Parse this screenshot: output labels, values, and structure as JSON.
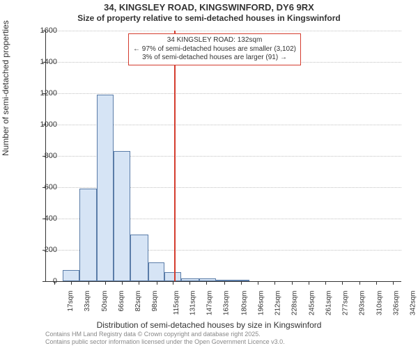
{
  "header": {
    "title": "34, KINGSLEY ROAD, KINGSWINFORD, DY6 9RX",
    "subtitle": "Size of property relative to semi-detached houses in Kingswinford"
  },
  "axes": {
    "y_label": "Number of semi-detached properties",
    "x_label": "Distribution of semi-detached houses by size in Kingswinford",
    "label_fontsize": 12
  },
  "chart": {
    "type": "histogram",
    "background_color": "#ffffff",
    "grid_color": "#c0c0c0",
    "axis_color": "#333333",
    "bar_fill": "#d6e4f5",
    "bar_stroke": "#5a7ca8",
    "marker_color": "#d43c2e",
    "ylim": [
      0,
      1600
    ],
    "y_ticks": [
      0,
      200,
      400,
      600,
      800,
      1000,
      1200,
      1400,
      1600
    ],
    "x_min": 9,
    "x_max": 350,
    "x_ticks": [
      {
        "v": 17,
        "label": "17sqm"
      },
      {
        "v": 33,
        "label": "33sqm"
      },
      {
        "v": 50,
        "label": "50sqm"
      },
      {
        "v": 66,
        "label": "66sqm"
      },
      {
        "v": 82,
        "label": "82sqm"
      },
      {
        "v": 98,
        "label": "98sqm"
      },
      {
        "v": 115,
        "label": "115sqm"
      },
      {
        "v": 131,
        "label": "131sqm"
      },
      {
        "v": 147,
        "label": "147sqm"
      },
      {
        "v": 163,
        "label": "163sqm"
      },
      {
        "v": 180,
        "label": "180sqm"
      },
      {
        "v": 196,
        "label": "196sqm"
      },
      {
        "v": 212,
        "label": "212sqm"
      },
      {
        "v": 228,
        "label": "228sqm"
      },
      {
        "v": 245,
        "label": "245sqm"
      },
      {
        "v": 261,
        "label": "261sqm"
      },
      {
        "v": 277,
        "label": "277sqm"
      },
      {
        "v": 293,
        "label": "293sqm"
      },
      {
        "v": 310,
        "label": "310sqm"
      },
      {
        "v": 326,
        "label": "326sqm"
      },
      {
        "v": 342,
        "label": "342sqm"
      }
    ],
    "bars": [
      {
        "x0": 25,
        "x1": 41,
        "count": 70
      },
      {
        "x0": 41,
        "x1": 58,
        "count": 590
      },
      {
        "x0": 58,
        "x1": 74,
        "count": 1190
      },
      {
        "x0": 74,
        "x1": 90,
        "count": 830
      },
      {
        "x0": 90,
        "x1": 107,
        "count": 300
      },
      {
        "x0": 107,
        "x1": 123,
        "count": 120
      },
      {
        "x0": 123,
        "x1": 139,
        "count": 60
      },
      {
        "x0": 139,
        "x1": 156,
        "count": 20
      },
      {
        "x0": 156,
        "x1": 172,
        "count": 18
      },
      {
        "x0": 172,
        "x1": 188,
        "count": 10
      },
      {
        "x0": 188,
        "x1": 204,
        "count": 8
      }
    ],
    "marker_x": 132
  },
  "annotation": {
    "line1": "34 KINGSLEY ROAD: 132sqm",
    "line2": "← 97% of semi-detached houses are smaller (3,102)",
    "line3": "3% of semi-detached houses are larger (91) →",
    "box_border": "#d43c2e"
  },
  "footer": {
    "line1": "Contains HM Land Registry data © Crown copyright and database right 2025.",
    "line2": "Contains public sector information licensed under the Open Government Licence v3.0.",
    "color": "#888888"
  }
}
